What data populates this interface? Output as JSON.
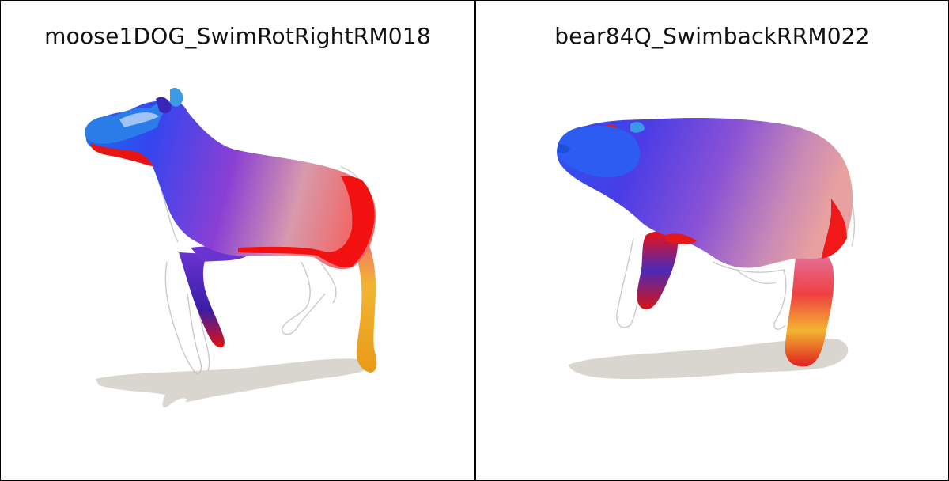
{
  "panels": [
    {
      "title": "moose1DOG_SwimRotRightRM018",
      "subject": "moose"
    },
    {
      "title": "bear84Q_SwimbackRRM022",
      "subject": "bear"
    }
  ],
  "colors": {
    "shadow": "#d9d6cf",
    "wireframe": "#c8c8c8",
    "blue": "#2f5bff",
    "violet": "#7c3cd6",
    "pink": "#e69aa8",
    "red": "#ff0000",
    "yellow": "#f2b531"
  }
}
